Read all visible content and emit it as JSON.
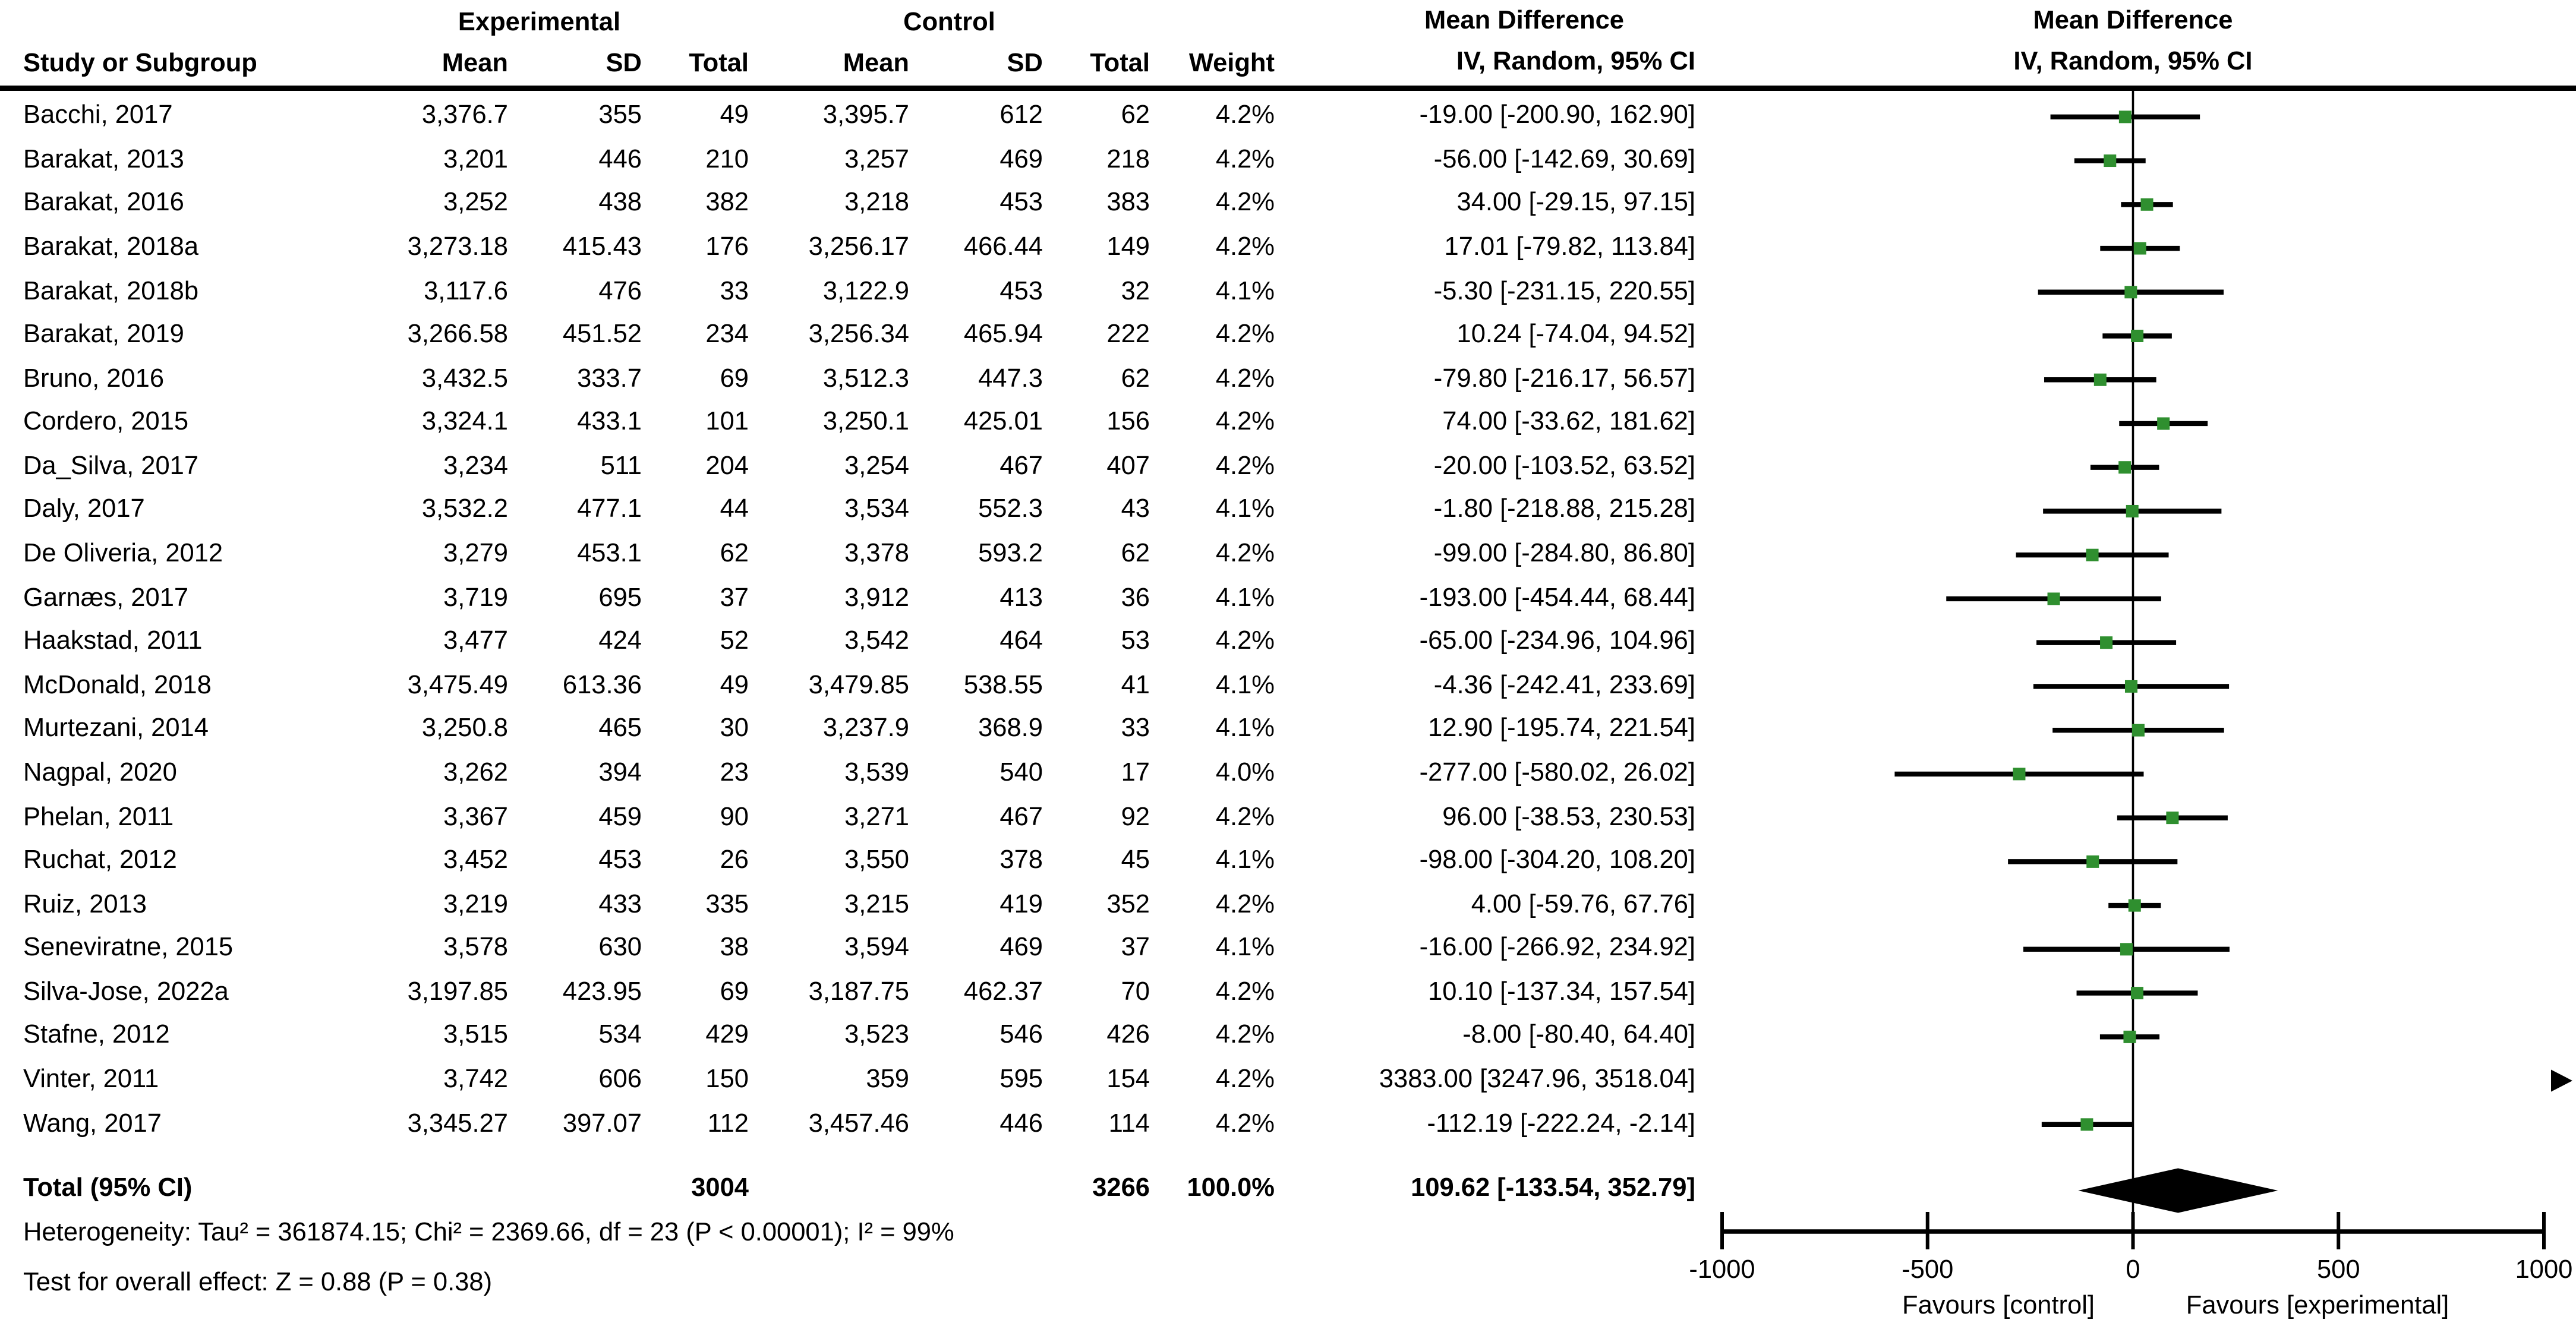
{
  "header": {
    "study_col": "Study or Subgroup",
    "experimental_group": "Experimental",
    "control_group": "Control",
    "mean": "Mean",
    "sd": "SD",
    "total": "Total",
    "weight": "Weight",
    "md_title": "Mean Difference",
    "md_method": "IV, Random, 95% CI"
  },
  "chart_data": {
    "type": "forest",
    "effect_measure": "Mean Difference",
    "model": "IV, Random, 95% CI",
    "marker_color": "#2f8f2f",
    "diamond_color": "#000000",
    "x_axis": {
      "min": -1000,
      "max": 1000,
      "tick_values": [
        -1000,
        -500,
        0,
        500,
        1000
      ],
      "tick_labels": [
        "-1000",
        "-500",
        "0",
        "500",
        "1000"
      ],
      "favours_left": "Favours [control]",
      "favours_right": "Favours [experimental]"
    },
    "studies": [
      {
        "name": "Bacchi, 2017",
        "exp_mean": "3,376.7",
        "exp_sd": "355",
        "exp_total": "49",
        "ctl_mean": "3,395.7",
        "ctl_sd": "612",
        "ctl_total": "62",
        "weight": "4.2%",
        "ci_text": "-19.00 [-200.90, 162.90]",
        "md": -19.0,
        "lo": -200.9,
        "hi": 162.9
      },
      {
        "name": "Barakat, 2013",
        "exp_mean": "3,201",
        "exp_sd": "446",
        "exp_total": "210",
        "ctl_mean": "3,257",
        "ctl_sd": "469",
        "ctl_total": "218",
        "weight": "4.2%",
        "ci_text": "-56.00 [-142.69, 30.69]",
        "md": -56.0,
        "lo": -142.69,
        "hi": 30.69
      },
      {
        "name": "Barakat, 2016",
        "exp_mean": "3,252",
        "exp_sd": "438",
        "exp_total": "382",
        "ctl_mean": "3,218",
        "ctl_sd": "453",
        "ctl_total": "383",
        "weight": "4.2%",
        "ci_text": "34.00 [-29.15, 97.15]",
        "md": 34.0,
        "lo": -29.15,
        "hi": 97.15
      },
      {
        "name": "Barakat, 2018a",
        "exp_mean": "3,273.18",
        "exp_sd": "415.43",
        "exp_total": "176",
        "ctl_mean": "3,256.17",
        "ctl_sd": "466.44",
        "ctl_total": "149",
        "weight": "4.2%",
        "ci_text": "17.01 [-79.82, 113.84]",
        "md": 17.01,
        "lo": -79.82,
        "hi": 113.84
      },
      {
        "name": "Barakat, 2018b",
        "exp_mean": "3,117.6",
        "exp_sd": "476",
        "exp_total": "33",
        "ctl_mean": "3,122.9",
        "ctl_sd": "453",
        "ctl_total": "32",
        "weight": "4.1%",
        "ci_text": "-5.30 [-231.15, 220.55]",
        "md": -5.3,
        "lo": -231.15,
        "hi": 220.55
      },
      {
        "name": "Barakat, 2019",
        "exp_mean": "3,266.58",
        "exp_sd": "451.52",
        "exp_total": "234",
        "ctl_mean": "3,256.34",
        "ctl_sd": "465.94",
        "ctl_total": "222",
        "weight": "4.2%",
        "ci_text": "10.24 [-74.04, 94.52]",
        "md": 10.24,
        "lo": -74.04,
        "hi": 94.52
      },
      {
        "name": "Bruno, 2016",
        "exp_mean": "3,432.5",
        "exp_sd": "333.7",
        "exp_total": "69",
        "ctl_mean": "3,512.3",
        "ctl_sd": "447.3",
        "ctl_total": "62",
        "weight": "4.2%",
        "ci_text": "-79.80 [-216.17, 56.57]",
        "md": -79.8,
        "lo": -216.17,
        "hi": 56.57
      },
      {
        "name": "Cordero, 2015",
        "exp_mean": "3,324.1",
        "exp_sd": "433.1",
        "exp_total": "101",
        "ctl_mean": "3,250.1",
        "ctl_sd": "425.01",
        "ctl_total": "156",
        "weight": "4.2%",
        "ci_text": "74.00 [-33.62, 181.62]",
        "md": 74.0,
        "lo": -33.62,
        "hi": 181.62
      },
      {
        "name": "Da_Silva, 2017",
        "exp_mean": "3,234",
        "exp_sd": "511",
        "exp_total": "204",
        "ctl_mean": "3,254",
        "ctl_sd": "467",
        "ctl_total": "407",
        "weight": "4.2%",
        "ci_text": "-20.00 [-103.52, 63.52]",
        "md": -20.0,
        "lo": -103.52,
        "hi": 63.52
      },
      {
        "name": "Daly, 2017",
        "exp_mean": "3,532.2",
        "exp_sd": "477.1",
        "exp_total": "44",
        "ctl_mean": "3,534",
        "ctl_sd": "552.3",
        "ctl_total": "43",
        "weight": "4.1%",
        "ci_text": "-1.80 [-218.88, 215.28]",
        "md": -1.8,
        "lo": -218.88,
        "hi": 215.28
      },
      {
        "name": "De Oliveria, 2012",
        "exp_mean": "3,279",
        "exp_sd": "453.1",
        "exp_total": "62",
        "ctl_mean": "3,378",
        "ctl_sd": "593.2",
        "ctl_total": "62",
        "weight": "4.2%",
        "ci_text": "-99.00 [-284.80, 86.80]",
        "md": -99.0,
        "lo": -284.8,
        "hi": 86.8
      },
      {
        "name": "Garnæs, 2017",
        "exp_mean": "3,719",
        "exp_sd": "695",
        "exp_total": "37",
        "ctl_mean": "3,912",
        "ctl_sd": "413",
        "ctl_total": "36",
        "weight": "4.1%",
        "ci_text": "-193.00 [-454.44, 68.44]",
        "md": -193.0,
        "lo": -454.44,
        "hi": 68.44
      },
      {
        "name": "Haakstad, 2011",
        "exp_mean": "3,477",
        "exp_sd": "424",
        "exp_total": "52",
        "ctl_mean": "3,542",
        "ctl_sd": "464",
        "ctl_total": "53",
        "weight": "4.2%",
        "ci_text": "-65.00 [-234.96, 104.96]",
        "md": -65.0,
        "lo": -234.96,
        "hi": 104.96
      },
      {
        "name": "McDonald, 2018",
        "exp_mean": "3,475.49",
        "exp_sd": "613.36",
        "exp_total": "49",
        "ctl_mean": "3,479.85",
        "ctl_sd": "538.55",
        "ctl_total": "41",
        "weight": "4.1%",
        "ci_text": "-4.36 [-242.41, 233.69]",
        "md": -4.36,
        "lo": -242.41,
        "hi": 233.69
      },
      {
        "name": "Murtezani, 2014",
        "exp_mean": "3,250.8",
        "exp_sd": "465",
        "exp_total": "30",
        "ctl_mean": "3,237.9",
        "ctl_sd": "368.9",
        "ctl_total": "33",
        "weight": "4.1%",
        "ci_text": "12.90 [-195.74, 221.54]",
        "md": 12.9,
        "lo": -195.74,
        "hi": 221.54
      },
      {
        "name": "Nagpal, 2020",
        "exp_mean": "3,262",
        "exp_sd": "394",
        "exp_total": "23",
        "ctl_mean": "3,539",
        "ctl_sd": "540",
        "ctl_total": "17",
        "weight": "4.0%",
        "ci_text": "-277.00 [-580.02, 26.02]",
        "md": -277.0,
        "lo": -580.02,
        "hi": 26.02
      },
      {
        "name": "Phelan, 2011",
        "exp_mean": "3,367",
        "exp_sd": "459",
        "exp_total": "90",
        "ctl_mean": "3,271",
        "ctl_sd": "467",
        "ctl_total": "92",
        "weight": "4.2%",
        "ci_text": "96.00 [-38.53, 230.53]",
        "md": 96.0,
        "lo": -38.53,
        "hi": 230.53
      },
      {
        "name": "Ruchat, 2012",
        "exp_mean": "3,452",
        "exp_sd": "453",
        "exp_total": "26",
        "ctl_mean": "3,550",
        "ctl_sd": "378",
        "ctl_total": "45",
        "weight": "4.1%",
        "ci_text": "-98.00 [-304.20, 108.20]",
        "md": -98.0,
        "lo": -304.2,
        "hi": 108.2
      },
      {
        "name": "Ruiz, 2013",
        "exp_mean": "3,219",
        "exp_sd": "433",
        "exp_total": "335",
        "ctl_mean": "3,215",
        "ctl_sd": "419",
        "ctl_total": "352",
        "weight": "4.2%",
        "ci_text": "4.00 [-59.76, 67.76]",
        "md": 4.0,
        "lo": -59.76,
        "hi": 67.76
      },
      {
        "name": "Seneviratne, 2015",
        "exp_mean": "3,578",
        "exp_sd": "630",
        "exp_total": "38",
        "ctl_mean": "3,594",
        "ctl_sd": "469",
        "ctl_total": "37",
        "weight": "4.1%",
        "ci_text": "-16.00 [-266.92, 234.92]",
        "md": -16.0,
        "lo": -266.92,
        "hi": 234.92
      },
      {
        "name": "Silva-Jose, 2022a",
        "exp_mean": "3,197.85",
        "exp_sd": "423.95",
        "exp_total": "69",
        "ctl_mean": "3,187.75",
        "ctl_sd": "462.37",
        "ctl_total": "70",
        "weight": "4.2%",
        "ci_text": "10.10 [-137.34, 157.54]",
        "md": 10.1,
        "lo": -137.34,
        "hi": 157.54
      },
      {
        "name": "Stafne, 2012",
        "exp_mean": "3,515",
        "exp_sd": "534",
        "exp_total": "429",
        "ctl_mean": "3,523",
        "ctl_sd": "546",
        "ctl_total": "426",
        "weight": "4.2%",
        "ci_text": "-8.00 [-80.40, 64.40]",
        "md": -8.0,
        "lo": -80.4,
        "hi": 64.4
      },
      {
        "name": "Vinter, 2011",
        "exp_mean": "3,742",
        "exp_sd": "606",
        "exp_total": "150",
        "ctl_mean": "359",
        "ctl_sd": "595",
        "ctl_total": "154",
        "weight": "4.2%",
        "ci_text": "3383.00 [3247.96, 3518.04]",
        "md": 3383.0,
        "lo": 3247.96,
        "hi": 3518.04
      },
      {
        "name": "Wang, 2017",
        "exp_mean": "3,345.27",
        "exp_sd": "397.07",
        "exp_total": "112",
        "ctl_mean": "3,457.46",
        "ctl_sd": "446",
        "ctl_total": "114",
        "weight": "4.2%",
        "ci_text": "-112.19 [-222.24, -2.14]",
        "md": -112.19,
        "lo": -222.24,
        "hi": -2.14
      }
    ],
    "total": {
      "label": "Total (95% CI)",
      "exp_total": "3004",
      "ctl_total": "3266",
      "weight": "100.0%",
      "ci_text": "109.62 [-133.54, 352.79]",
      "md": 109.62,
      "lo": -133.54,
      "hi": 352.79
    },
    "heterogeneity": "Heterogeneity: Tau² = 361874.15; Chi² = 2369.66, df = 23 (P < 0.00001); I² = 99%",
    "overall_effect": "Test for overall effect: Z = 0.88 (P = 0.38)"
  }
}
